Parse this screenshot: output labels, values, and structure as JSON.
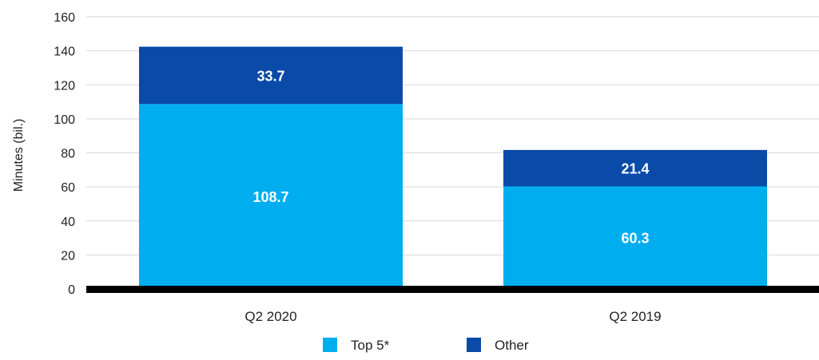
{
  "chart_data": {
    "type": "bar",
    "stacked": true,
    "categories": [
      "Q2 2020",
      "Q2 2019"
    ],
    "series": [
      {
        "name": "Top 5*",
        "values": [
          108.7,
          60.3
        ],
        "color": "#00aeef"
      },
      {
        "name": "Other",
        "values": [
          33.7,
          21.4
        ],
        "color": "#0a4aa8"
      }
    ],
    "ylabel": "Minutes (bil.)",
    "ylim": [
      0,
      160
    ],
    "yticks": [
      0,
      20,
      40,
      60,
      80,
      100,
      120,
      140,
      160
    ],
    "grid": true,
    "legend_position": "bottom"
  }
}
